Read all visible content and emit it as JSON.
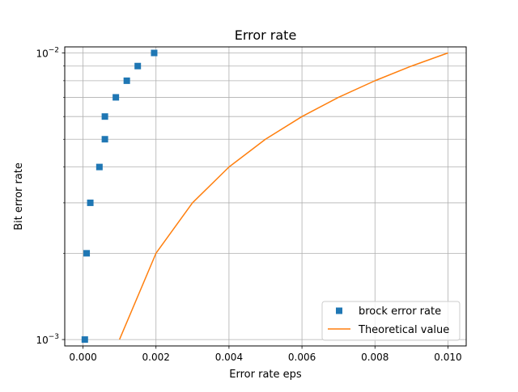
{
  "chart_data": {
    "type": "line",
    "title": "Error rate",
    "xlabel": "Error rate eps",
    "ylabel": "Bit error rate",
    "xlim": [
      -0.0005,
      0.0105
    ],
    "ylim": [
      0.00095,
      0.0105
    ],
    "yscale": "log",
    "grid": true,
    "legend_position": "lower-right",
    "x_ticks": [
      {
        "value": 0.0,
        "label": "0.000"
      },
      {
        "value": 0.002,
        "label": "0.002"
      },
      {
        "value": 0.004,
        "label": "0.004"
      },
      {
        "value": 0.006,
        "label": "0.006"
      },
      {
        "value": 0.008,
        "label": "0.008"
      },
      {
        "value": 0.01,
        "label": "0.010"
      }
    ],
    "y_major_ticks": [
      {
        "value": 0.001,
        "base": "10",
        "exp": "−3"
      },
      {
        "value": 0.01,
        "base": "10",
        "exp": "−2"
      }
    ],
    "y_minor_ticks": [
      0.002,
      0.003,
      0.004,
      0.005,
      0.006,
      0.007,
      0.008,
      0.009
    ],
    "series": [
      {
        "name": "brock error rate",
        "style": "markers",
        "marker": "square",
        "color": "#1f77b4",
        "x": [
          5e-05,
          0.0001,
          0.0002,
          0.00045,
          0.0006,
          0.0006,
          0.0009,
          0.0012,
          0.0015,
          0.00195
        ],
        "y": [
          0.001,
          0.002,
          0.003,
          0.004,
          0.005,
          0.006,
          0.007,
          0.008,
          0.009,
          0.01
        ]
      },
      {
        "name": "Theoretical value",
        "style": "line",
        "color": "#ff7f0e",
        "x": [
          0.001,
          0.002,
          0.003,
          0.004,
          0.005,
          0.006,
          0.007,
          0.008,
          0.009,
          0.01
        ],
        "y": [
          0.001,
          0.002,
          0.003,
          0.004,
          0.005,
          0.006,
          0.007,
          0.008,
          0.009,
          0.01
        ]
      }
    ]
  }
}
